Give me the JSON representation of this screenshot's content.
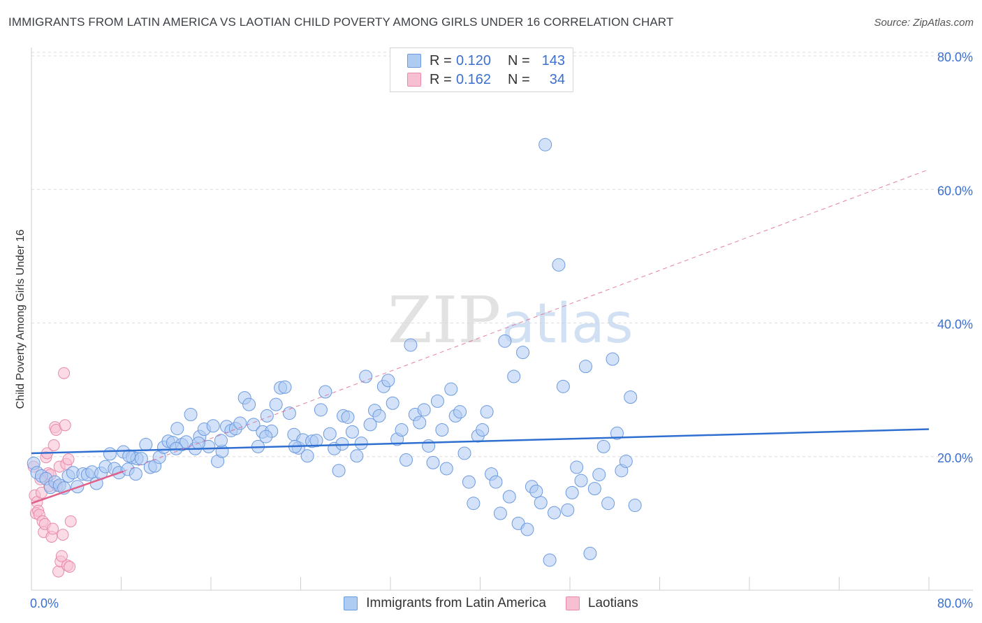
{
  "title": "IMMIGRANTS FROM LATIN AMERICA VS LAOTIAN CHILD POVERTY AMONG GIRLS UNDER 16 CORRELATION CHART",
  "source": "Source: ZipAtlas.com",
  "watermark": {
    "zip": "ZIP",
    "atlas": "atlas"
  },
  "colors": {
    "blue_fill": "#aecbf2",
    "blue_stroke": "#6b9ae0",
    "blue_line": "#2f6fd0",
    "pink_fill": "#f7bfd2",
    "pink_stroke": "#e88aaa",
    "pink_line": "#e0608a",
    "grid": "#dcdcdc",
    "tick_text": "#3b6fd0"
  },
  "legend": {
    "rows": [
      {
        "r_label": "R =",
        "r_value": "0.120",
        "n_label": "N =",
        "n_value": "143"
      },
      {
        "r_label": "R =",
        "r_value": "0.162",
        "n_label": "N =",
        "n_value": "34"
      }
    ]
  },
  "chart_data": {
    "type": "scatter",
    "title": "IMMIGRANTS FROM LATIN AMERICA VS LAOTIAN CHILD POVERTY AMONG GIRLS UNDER 16 CORRELATION CHART",
    "xlabel": "",
    "ylabel": "Child Poverty Among Girls Under 16",
    "xlim": [
      0,
      80
    ],
    "ylim": [
      0,
      82
    ],
    "x_tick_labels": [
      "0.0%",
      "80.0%"
    ],
    "y_ticks": [
      20,
      40,
      60,
      80
    ],
    "y_tick_labels": [
      "20.0%",
      "40.0%",
      "60.0%",
      "80.0%"
    ],
    "grid": true,
    "legend_position": "top-center",
    "series": [
      {
        "name": "Immigrants from Latin America",
        "color": "#aecbf2",
        "trend": {
          "x": [
            0,
            80
          ],
          "y": [
            20.5,
            24.1
          ],
          "style": "solid"
        },
        "points": [
          [
            0.2,
            19.0
          ],
          [
            0.5,
            17.6
          ],
          [
            0.9,
            17.1
          ],
          [
            1.3,
            16.7
          ],
          [
            1.7,
            15.4
          ],
          [
            2.1,
            16.2
          ],
          [
            2.5,
            15.7
          ],
          [
            2.9,
            15.3
          ],
          [
            3.3,
            17.1
          ],
          [
            3.7,
            17.6
          ],
          [
            4.1,
            15.5
          ],
          [
            4.6,
            17.4
          ],
          [
            5.0,
            17.3
          ],
          [
            5.4,
            17.7
          ],
          [
            5.8,
            16.0
          ],
          [
            6.2,
            17.5
          ],
          [
            6.6,
            18.5
          ],
          [
            7.0,
            20.4
          ],
          [
            7.4,
            18.2
          ],
          [
            7.8,
            17.6
          ],
          [
            8.2,
            20.7
          ],
          [
            8.6,
            18.1
          ],
          [
            9.0,
            19.9
          ],
          [
            9.4,
            19.7
          ],
          [
            9.8,
            19.7
          ],
          [
            10.2,
            21.8
          ],
          [
            10.6,
            18.4
          ],
          [
            11.0,
            18.6
          ],
          [
            11.4,
            19.9
          ],
          [
            11.8,
            21.4
          ],
          [
            12.2,
            22.3
          ],
          [
            12.6,
            22.1
          ],
          [
            13.0,
            24.2
          ],
          [
            13.4,
            21.8
          ],
          [
            13.8,
            22.2
          ],
          [
            14.2,
            26.3
          ],
          [
            14.6,
            21.2
          ],
          [
            15.0,
            23.0
          ],
          [
            15.4,
            24.1
          ],
          [
            15.8,
            21.5
          ],
          [
            16.2,
            24.6
          ],
          [
            16.6,
            19.3
          ],
          [
            17.0,
            20.8
          ],
          [
            17.4,
            24.5
          ],
          [
            17.8,
            23.9
          ],
          [
            18.2,
            24.2
          ],
          [
            18.6,
            25.0
          ],
          [
            19.0,
            28.8
          ],
          [
            19.4,
            27.8
          ],
          [
            19.8,
            24.8
          ],
          [
            20.2,
            21.5
          ],
          [
            20.6,
            23.7
          ],
          [
            21.0,
            26.1
          ],
          [
            21.4,
            23.8
          ],
          [
            21.8,
            27.8
          ],
          [
            22.2,
            30.3
          ],
          [
            22.6,
            30.4
          ],
          [
            23.0,
            26.5
          ],
          [
            23.4,
            23.3
          ],
          [
            23.8,
            21.3
          ],
          [
            24.2,
            22.5
          ],
          [
            24.6,
            20.1
          ],
          [
            25.0,
            22.3
          ],
          [
            25.4,
            22.4
          ],
          [
            25.8,
            27.0
          ],
          [
            26.2,
            29.7
          ],
          [
            26.6,
            23.4
          ],
          [
            27.0,
            21.2
          ],
          [
            27.4,
            17.9
          ],
          [
            27.8,
            26.1
          ],
          [
            28.2,
            25.9
          ],
          [
            28.6,
            23.7
          ],
          [
            29.0,
            20.1
          ],
          [
            29.4,
            22.0
          ],
          [
            29.8,
            32.0
          ],
          [
            30.2,
            24.8
          ],
          [
            30.6,
            26.9
          ],
          [
            31.0,
            26.1
          ],
          [
            31.4,
            30.5
          ],
          [
            31.8,
            31.4
          ],
          [
            32.2,
            28.0
          ],
          [
            32.6,
            22.6
          ],
          [
            33.0,
            24.0
          ],
          [
            33.4,
            19.5
          ],
          [
            33.8,
            36.7
          ],
          [
            34.2,
            26.3
          ],
          [
            34.6,
            25.1
          ],
          [
            35.0,
            27.0
          ],
          [
            35.4,
            21.6
          ],
          [
            35.8,
            19.1
          ],
          [
            36.2,
            28.3
          ],
          [
            36.6,
            24.0
          ],
          [
            37.0,
            18.2
          ],
          [
            37.4,
            30.1
          ],
          [
            37.8,
            26.1
          ],
          [
            38.2,
            26.7
          ],
          [
            38.6,
            20.5
          ],
          [
            39.0,
            16.2
          ],
          [
            39.4,
            13.0
          ],
          [
            39.8,
            23.1
          ],
          [
            40.2,
            24.0
          ],
          [
            40.6,
            26.7
          ],
          [
            41.0,
            17.4
          ],
          [
            41.4,
            16.2
          ],
          [
            41.8,
            11.5
          ],
          [
            42.2,
            37.3
          ],
          [
            42.6,
            14.0
          ],
          [
            43.0,
            32.0
          ],
          [
            43.4,
            10.0
          ],
          [
            43.8,
            35.6
          ],
          [
            44.2,
            9.1
          ],
          [
            44.6,
            15.5
          ],
          [
            45.0,
            14.8
          ],
          [
            45.4,
            13.1
          ],
          [
            45.8,
            66.7
          ],
          [
            46.2,
            4.5
          ],
          [
            46.6,
            11.6
          ],
          [
            47.0,
            48.7
          ],
          [
            47.4,
            30.5
          ],
          [
            47.8,
            12.0
          ],
          [
            48.2,
            14.6
          ],
          [
            48.6,
            18.4
          ],
          [
            49.0,
            16.4
          ],
          [
            49.4,
            33.5
          ],
          [
            49.8,
            5.5
          ],
          [
            50.2,
            15.2
          ],
          [
            50.6,
            17.3
          ],
          [
            51.0,
            21.5
          ],
          [
            51.4,
            13.0
          ],
          [
            51.8,
            34.6
          ],
          [
            52.2,
            23.5
          ],
          [
            52.6,
            17.9
          ],
          [
            53.0,
            19.3
          ],
          [
            53.4,
            28.9
          ],
          [
            53.8,
            12.7
          ],
          [
            23.5,
            21.5
          ],
          [
            16.9,
            22.4
          ],
          [
            12.9,
            21.2
          ],
          [
            8.7,
            20.1
          ],
          [
            14.9,
            22.0
          ],
          [
            20.9,
            23.0
          ],
          [
            27.7,
            21.9
          ],
          [
            9.3,
            17.4
          ]
        ]
      },
      {
        "name": "Laotians",
        "color": "#f7bfd2",
        "trend": {
          "x": [
            0,
            8.2
          ],
          "y": [
            13.0,
            17.8
          ],
          "style": "solid"
        },
        "trend_extension": {
          "x": [
            8.2,
            80
          ],
          "y": [
            17.8,
            63.0
          ],
          "style": "dashed"
        },
        "points": [
          [
            0.2,
            18.5
          ],
          [
            0.3,
            14.2
          ],
          [
            0.4,
            11.5
          ],
          [
            0.5,
            13.2
          ],
          [
            0.6,
            11.9
          ],
          [
            0.7,
            11.3
          ],
          [
            0.8,
            16.6
          ],
          [
            0.9,
            14.6
          ],
          [
            1.0,
            10.3
          ],
          [
            1.1,
            8.7
          ],
          [
            1.2,
            9.9
          ],
          [
            1.3,
            19.9
          ],
          [
            1.4,
            20.5
          ],
          [
            1.5,
            17.5
          ],
          [
            1.6,
            15.6
          ],
          [
            1.7,
            17.3
          ],
          [
            1.8,
            8.0
          ],
          [
            1.9,
            9.2
          ],
          [
            2.0,
            21.7
          ],
          [
            2.1,
            24.4
          ],
          [
            2.2,
            24.0
          ],
          [
            2.3,
            15.6
          ],
          [
            2.4,
            2.8
          ],
          [
            2.5,
            18.5
          ],
          [
            2.6,
            4.3
          ],
          [
            2.7,
            5.1
          ],
          [
            2.8,
            8.3
          ],
          [
            2.9,
            32.5
          ],
          [
            3.0,
            24.7
          ],
          [
            3.1,
            18.9
          ],
          [
            3.2,
            3.7
          ],
          [
            3.3,
            19.6
          ],
          [
            3.4,
            3.5
          ],
          [
            3.5,
            10.3
          ]
        ]
      }
    ]
  },
  "bottom_legend": {
    "items": [
      "Immigrants from Latin America",
      "Laotians"
    ]
  }
}
